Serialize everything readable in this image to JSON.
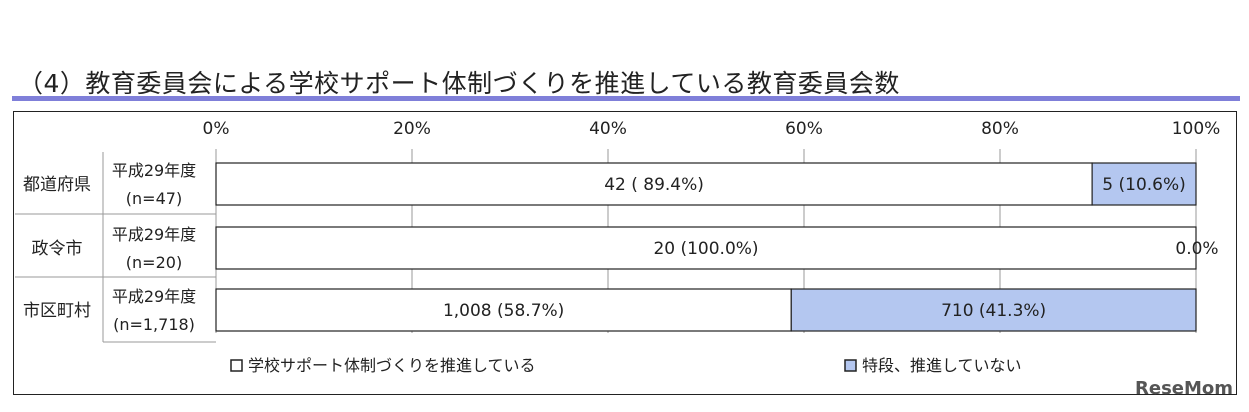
{
  "title": "（4）教育委員会による学校サポート体制づくりを推進している教育委員会数",
  "watermark": "ReseMom",
  "colors": {
    "series_a": "#ffffff",
    "series_b": "#b4c7f0",
    "title_rule": "#7f7fd9",
    "grid": "#9a9a9a"
  },
  "chart_data": {
    "type": "bar",
    "orientation": "horizontal",
    "stacked": "percent",
    "xlim": [
      0,
      100
    ],
    "ticks": [
      "0%",
      "20%",
      "40%",
      "60%",
      "80%",
      "100%"
    ],
    "tick_values": [
      0,
      20,
      40,
      60,
      80,
      100
    ],
    "grid": true,
    "legend_position": "bottom",
    "categories": [
      {
        "group": "都道府県",
        "year": "平成29年度",
        "n": "(n=47)"
      },
      {
        "group": "政令市",
        "year": "平成29年度",
        "n": "(n=20)"
      },
      {
        "group": "市区町村",
        "year": "平成29年度",
        "n": "(n=1,718)"
      }
    ],
    "series": [
      {
        "name": "学校サポート体制づくりを推進している",
        "values": [
          89.4,
          100.0,
          58.7
        ],
        "labels": [
          "42 ( 89.4%)",
          "20 (100.0%)",
          "1,008 (58.7%)"
        ]
      },
      {
        "name": "特段、推進していない",
        "values": [
          10.6,
          0.0,
          41.3
        ],
        "labels": [
          "5 (10.6%)",
          "0.0%",
          "710 (41.3%)"
        ]
      }
    ]
  }
}
